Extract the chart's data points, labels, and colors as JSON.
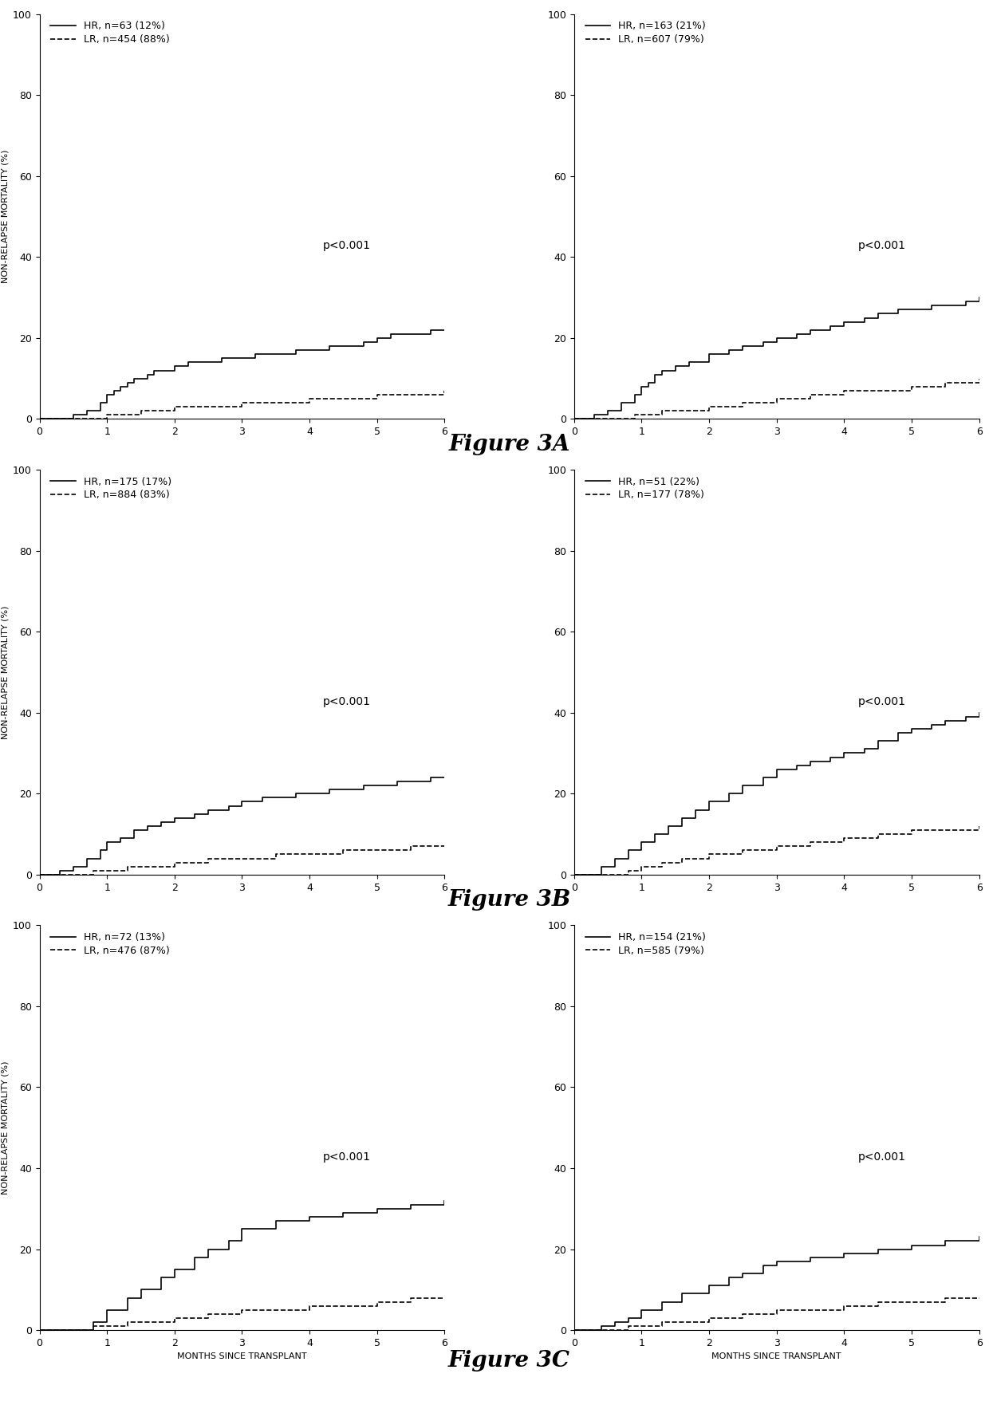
{
  "figure_labels": [
    "Figure 3A",
    "Figure 3B",
    "Figure 3C"
  ],
  "panels": [
    {
      "row": 0,
      "col": 0,
      "hr_label": "HR, n=63 (12%)",
      "lr_label": "LR, n=454 (88%)",
      "pvalue": "p<0.001",
      "hr_curve": {
        "x": [
          0,
          0.1,
          0.3,
          0.5,
          0.7,
          0.9,
          1.0,
          1.1,
          1.2,
          1.3,
          1.4,
          1.5,
          1.6,
          1.7,
          1.8,
          2.0,
          2.2,
          2.5,
          2.7,
          3.0,
          3.2,
          3.5,
          3.8,
          4.0,
          4.3,
          4.5,
          4.8,
          5.0,
          5.2,
          5.5,
          5.8,
          6.0
        ],
        "y": [
          0,
          0,
          0,
          1,
          2,
          4,
          6,
          7,
          8,
          9,
          10,
          10,
          11,
          12,
          12,
          13,
          14,
          14,
          15,
          15,
          16,
          16,
          17,
          17,
          18,
          18,
          19,
          20,
          21,
          21,
          22,
          22
        ]
      },
      "lr_curve": {
        "x": [
          0,
          0.5,
          0.7,
          0.9,
          1.0,
          1.2,
          1.5,
          1.8,
          2.0,
          2.5,
          3.0,
          3.5,
          4.0,
          4.5,
          5.0,
          5.5,
          6.0
        ],
        "y": [
          0,
          0,
          0,
          0,
          1,
          1,
          2,
          2,
          3,
          3,
          4,
          4,
          5,
          5,
          6,
          6,
          7
        ]
      }
    },
    {
      "row": 0,
      "col": 1,
      "hr_label": "HR, n=163 (21%)",
      "lr_label": "LR, n=607 (79%)",
      "pvalue": "p<0.001",
      "hr_curve": {
        "x": [
          0,
          0.1,
          0.3,
          0.5,
          0.7,
          0.9,
          1.0,
          1.1,
          1.2,
          1.3,
          1.5,
          1.7,
          2.0,
          2.3,
          2.5,
          2.8,
          3.0,
          3.3,
          3.5,
          3.8,
          4.0,
          4.3,
          4.5,
          4.8,
          5.0,
          5.3,
          5.5,
          5.8,
          6.0
        ],
        "y": [
          0,
          0,
          1,
          2,
          4,
          6,
          8,
          9,
          11,
          12,
          13,
          14,
          16,
          17,
          18,
          19,
          20,
          21,
          22,
          23,
          24,
          25,
          26,
          27,
          27,
          28,
          28,
          29,
          30
        ]
      },
      "lr_curve": {
        "x": [
          0,
          0.5,
          0.7,
          0.9,
          1.0,
          1.3,
          1.5,
          2.0,
          2.5,
          3.0,
          3.5,
          4.0,
          4.5,
          5.0,
          5.5,
          6.0
        ],
        "y": [
          0,
          0,
          0,
          1,
          1,
          2,
          2,
          3,
          4,
          5,
          6,
          7,
          7,
          8,
          9,
          10
        ]
      }
    },
    {
      "row": 1,
      "col": 0,
      "hr_label": "HR, n=175 (17%)",
      "lr_label": "LR, n=884 (83%)",
      "pvalue": "p<0.001",
      "hr_curve": {
        "x": [
          0,
          0.1,
          0.3,
          0.5,
          0.7,
          0.9,
          1.0,
          1.2,
          1.4,
          1.6,
          1.8,
          2.0,
          2.3,
          2.5,
          2.8,
          3.0,
          3.3,
          3.5,
          3.8,
          4.0,
          4.3,
          4.5,
          4.8,
          5.0,
          5.3,
          5.5,
          5.8,
          6.0
        ],
        "y": [
          0,
          0,
          1,
          2,
          4,
          6,
          8,
          9,
          11,
          12,
          13,
          14,
          15,
          16,
          17,
          18,
          19,
          19,
          20,
          20,
          21,
          21,
          22,
          22,
          23,
          23,
          24,
          24
        ]
      },
      "lr_curve": {
        "x": [
          0,
          0.5,
          0.8,
          1.0,
          1.3,
          1.6,
          2.0,
          2.5,
          3.0,
          3.5,
          4.0,
          4.5,
          5.0,
          5.5,
          6.0
        ],
        "y": [
          0,
          0,
          1,
          1,
          2,
          2,
          3,
          4,
          4,
          5,
          5,
          6,
          6,
          7,
          7
        ]
      }
    },
    {
      "row": 1,
      "col": 1,
      "hr_label": "HR, n=51 (22%)",
      "lr_label": "LR, n=177 (78%)",
      "pvalue": "p<0.001",
      "hr_curve": {
        "x": [
          0,
          0.2,
          0.4,
          0.6,
          0.8,
          1.0,
          1.2,
          1.4,
          1.6,
          1.8,
          2.0,
          2.3,
          2.5,
          2.8,
          3.0,
          3.3,
          3.5,
          3.8,
          4.0,
          4.3,
          4.5,
          4.8,
          5.0,
          5.3,
          5.5,
          5.8,
          6.0
        ],
        "y": [
          0,
          0,
          2,
          4,
          6,
          8,
          10,
          12,
          14,
          16,
          18,
          20,
          22,
          24,
          26,
          27,
          28,
          29,
          30,
          31,
          33,
          35,
          36,
          37,
          38,
          39,
          40
        ]
      },
      "lr_curve": {
        "x": [
          0,
          0.5,
          0.8,
          1.0,
          1.3,
          1.6,
          2.0,
          2.5,
          3.0,
          3.5,
          4.0,
          4.5,
          5.0,
          5.5,
          6.0
        ],
        "y": [
          0,
          0,
          1,
          2,
          3,
          4,
          5,
          6,
          7,
          8,
          9,
          10,
          11,
          11,
          12
        ]
      }
    },
    {
      "row": 2,
      "col": 0,
      "hr_label": "HR, n=72 (13%)",
      "lr_label": "LR, n=476 (87%)",
      "pvalue": "p<0.001",
      "hr_curve": {
        "x": [
          0,
          0.5,
          0.8,
          1.0,
          1.3,
          1.5,
          1.8,
          2.0,
          2.3,
          2.5,
          2.8,
          3.0,
          3.5,
          4.0,
          4.5,
          5.0,
          5.5,
          6.0
        ],
        "y": [
          0,
          0,
          2,
          5,
          8,
          10,
          13,
          15,
          18,
          20,
          22,
          25,
          27,
          28,
          29,
          30,
          31,
          32
        ]
      },
      "lr_curve": {
        "x": [
          0,
          0.5,
          0.8,
          1.0,
          1.3,
          1.6,
          2.0,
          2.5,
          3.0,
          3.5,
          4.0,
          4.5,
          5.0,
          5.5,
          6.0
        ],
        "y": [
          0,
          0,
          1,
          1,
          2,
          2,
          3,
          4,
          5,
          5,
          6,
          6,
          7,
          8,
          8
        ]
      }
    },
    {
      "row": 2,
      "col": 1,
      "hr_label": "HR, n=154 (21%)",
      "lr_label": "LR, n=585 (79%)",
      "pvalue": "p<0.001",
      "hr_curve": {
        "x": [
          0,
          0.2,
          0.4,
          0.6,
          0.8,
          1.0,
          1.3,
          1.6,
          2.0,
          2.3,
          2.5,
          2.8,
          3.0,
          3.5,
          4.0,
          4.5,
          5.0,
          5.5,
          6.0
        ],
        "y": [
          0,
          0,
          1,
          2,
          3,
          5,
          7,
          9,
          11,
          13,
          14,
          16,
          17,
          18,
          19,
          20,
          21,
          22,
          23
        ]
      },
      "lr_curve": {
        "x": [
          0,
          0.5,
          0.8,
          1.0,
          1.3,
          1.6,
          2.0,
          2.5,
          3.0,
          3.5,
          4.0,
          4.5,
          5.0,
          5.5,
          6.0
        ],
        "y": [
          0,
          0,
          1,
          1,
          2,
          2,
          3,
          4,
          5,
          5,
          6,
          7,
          7,
          8,
          8
        ]
      }
    }
  ],
  "ylim": [
    0,
    100
  ],
  "xlim": [
    0,
    6
  ],
  "yticks": [
    0,
    20,
    40,
    60,
    80,
    100
  ],
  "xticks": [
    0,
    1,
    2,
    3,
    4,
    5,
    6
  ],
  "ylabel": "NON-RELAPSE MORTALITY (%)",
  "xlabel_bottom": "MONTHS SINCE TRANSPLANT",
  "line_color": "#000000",
  "background_color": "#ffffff",
  "figure_title_fontsize": 20,
  "axis_label_fontsize": 8,
  "tick_fontsize": 9,
  "legend_fontsize": 9,
  "pvalue_fontsize": 10
}
